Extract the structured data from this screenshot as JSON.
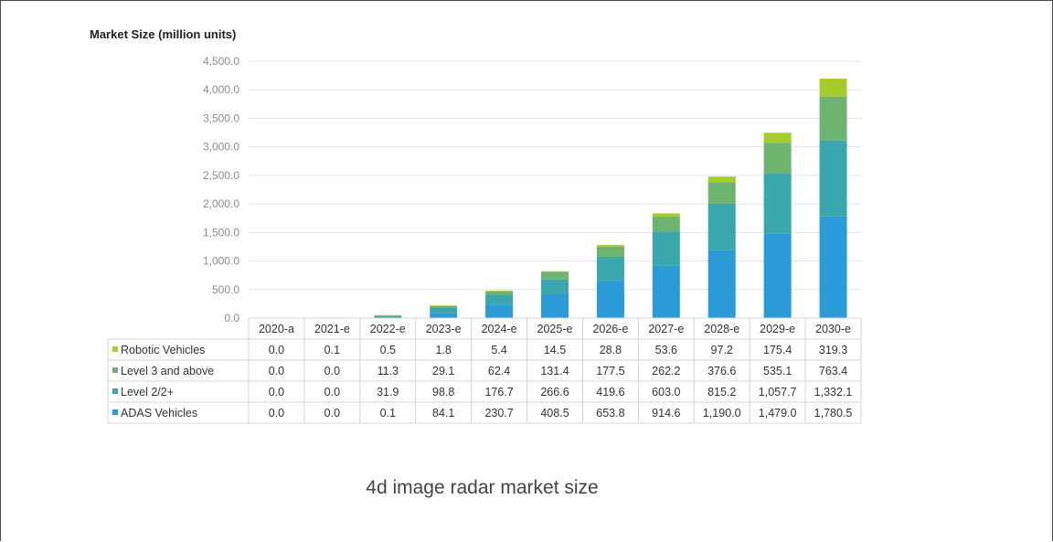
{
  "ylabel": "Market Size (million units)",
  "caption": "4d image radar market size",
  "chart_data": {
    "type": "bar",
    "stacked": true,
    "ylabel": "Market Size (million units)",
    "ylim": [
      0,
      4500
    ],
    "yticks": [
      "0.0",
      "500.0",
      "1,000.0",
      "1,500.0",
      "2,000.0",
      "2,500.0",
      "3,000.0",
      "3,500.0",
      "4,000.0",
      "4,500.0"
    ],
    "categories": [
      "2020-a",
      "2021-e",
      "2022-e",
      "2023-e",
      "2024-e",
      "2025-e",
      "2026-e",
      "2027-e",
      "2028-e",
      "2029-e",
      "2030-e"
    ],
    "series": [
      {
        "name": "ADAS Vehicles",
        "color": "#2b9bd8",
        "values": [
          0.0,
          0.0,
          0.1,
          84.1,
          230.7,
          408.5,
          653.8,
          914.6,
          1190.0,
          1479.0,
          1780.5
        ],
        "labels": [
          "0.0",
          "0.0",
          "0.1",
          "84.1",
          "230.7",
          "408.5",
          "653.8",
          "914.6",
          "1,190.0",
          "1,479.0",
          "1,780.5"
        ]
      },
      {
        "name": "Level 2/2+",
        "color": "#3aa6ad",
        "values": [
          0.0,
          0.0,
          31.9,
          98.8,
          176.7,
          266.6,
          419.6,
          603.0,
          815.2,
          1057.7,
          1332.1
        ],
        "labels": [
          "0.0",
          "0.0",
          "31.9",
          "98.8",
          "176.7",
          "266.6",
          "419.6",
          "603.0",
          "815.2",
          "1,057.7",
          "1,332.1"
        ]
      },
      {
        "name": "Level 3 and above",
        "color": "#6db46e",
        "values": [
          0.0,
          0.0,
          11.3,
          29.1,
          62.4,
          131.4,
          177.5,
          262.2,
          376.6,
          535.1,
          763.4
        ],
        "labels": [
          "0.0",
          "0.0",
          "11.3",
          "29.1",
          "62.4",
          "131.4",
          "177.5",
          "262.2",
          "376.6",
          "535.1",
          "763.4"
        ]
      },
      {
        "name": "Robotic Vehicles",
        "color": "#a5cc2a",
        "values": [
          0.0,
          0.1,
          0.5,
          1.8,
          5.4,
          14.5,
          28.8,
          53.6,
          97.2,
          175.4,
          319.3
        ],
        "labels": [
          "0.0",
          "0.1",
          "0.5",
          "1.8",
          "5.4",
          "14.5",
          "28.8",
          "53.6",
          "97.2",
          "175.4",
          "319.3"
        ]
      }
    ],
    "table_row_order": [
      "Robotic Vehicles",
      "Level 3 and above",
      "Level 2/2+",
      "ADAS Vehicles"
    ],
    "grid": true
  }
}
